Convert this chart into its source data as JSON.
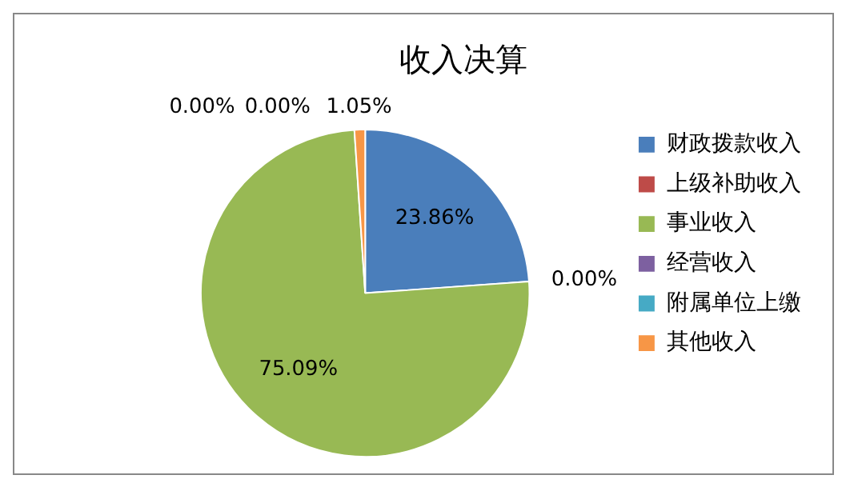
{
  "chart_data": {
    "type": "pie",
    "title": "收入决算",
    "categories": [
      "财政拨款收入",
      "上级补助收入",
      "事业收入",
      "经营收入",
      "附属单位上缴",
      "其他收入"
    ],
    "values": [
      23.86,
      0.0,
      75.09,
      0.0,
      0.0,
      1.05
    ],
    "colors": [
      "#4a7ebb",
      "#be4b48",
      "#98b954",
      "#7d60a0",
      "#46aac5",
      "#f79646"
    ],
    "value_labels": [
      "23.86%",
      "0.00%",
      "75.09%",
      "0.00%",
      "0.00%",
      "1.05%"
    ],
    "legend": "right"
  }
}
